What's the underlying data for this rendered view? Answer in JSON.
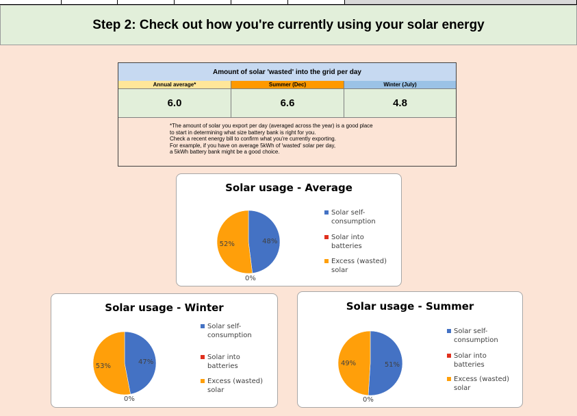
{
  "step_title": "Step 2: Check out how you're currently using your solar energy",
  "table": {
    "header": "Amount of solar 'wasted' into the grid per day",
    "columns": [
      {
        "label": "Annual average*",
        "value": "6.0",
        "color": "#ffe699"
      },
      {
        "label": "Summer (Dec)",
        "value": "6.6",
        "color": "#ff9900"
      },
      {
        "label": "Winter (July)",
        "value": "4.8",
        "color": "#9bc2e6"
      }
    ],
    "note_lines": [
      "*The amount of solar you export per day (averaged across the year) is a good place",
      "to start in determining what size battery bank is right for you.",
      "Check a recent energy bill to confirm what you're currently exporting.",
      "For example, if you have on average 5kWh of 'wasted' solar per day,",
      "a 5kWh battery bank might be a good choice."
    ]
  },
  "legend": [
    {
      "label": "Solar self-consumption",
      "color": "#4472c4"
    },
    {
      "label": "Solar into batteries",
      "color": "#e0301e"
    },
    {
      "label": "Excess (wasted) solar",
      "color": "#ff9f0a"
    }
  ],
  "chart_data": [
    {
      "type": "pie",
      "title": "Solar usage - Average",
      "categories": [
        "Solar self-consumption",
        "Solar into batteries",
        "Excess (wasted) solar"
      ],
      "values": [
        48,
        0,
        52
      ],
      "labels": [
        "48%",
        "0%",
        "52%"
      ]
    },
    {
      "type": "pie",
      "title": "Solar usage - Winter",
      "categories": [
        "Solar self-consumption",
        "Solar into batteries",
        "Excess (wasted) solar"
      ],
      "values": [
        47,
        0,
        53
      ],
      "labels": [
        "47%",
        "0%",
        "53%"
      ]
    },
    {
      "type": "pie",
      "title": "Solar usage - Summer",
      "categories": [
        "Solar self-consumption",
        "Solar into batteries",
        "Excess (wasted) solar"
      ],
      "values": [
        51,
        0,
        49
      ],
      "labels": [
        "51%",
        "0%",
        "49%"
      ]
    }
  ]
}
